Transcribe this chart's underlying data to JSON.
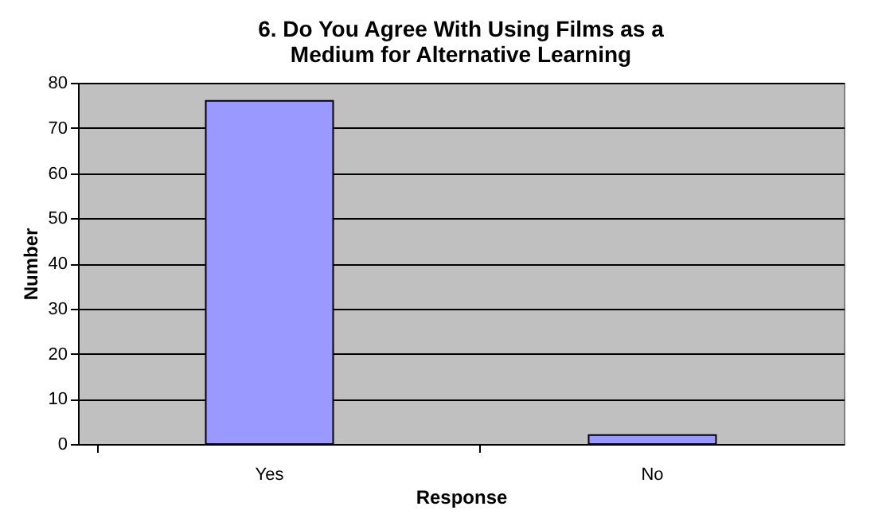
{
  "chart_data": {
    "type": "bar",
    "title": "6. Do You Agree With Using Films as a\nMedium for Alternative Learning",
    "xlabel": "Response",
    "ylabel": "Number",
    "categories": [
      "Yes",
      "No"
    ],
    "values": [
      76,
      2
    ],
    "color": "#9999ff",
    "ylim": [
      0,
      80
    ],
    "yticks": [
      0,
      10,
      20,
      30,
      40,
      50,
      60,
      70,
      80
    ],
    "grid": "y"
  }
}
